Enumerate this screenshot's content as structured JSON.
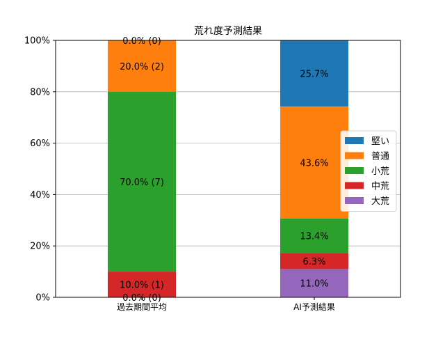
{
  "chart_data": {
    "type": "bar",
    "stacked": true,
    "title": "荒れ度予測結果",
    "xlabel": "",
    "ylabel": "",
    "categories": [
      "過去期間平均",
      "AI予測結果"
    ],
    "ylim": [
      0,
      100
    ],
    "yticks": [
      0,
      20,
      40,
      60,
      80,
      100
    ],
    "ytick_labels": [
      "0%",
      "20%",
      "40%",
      "60%",
      "80%",
      "100%"
    ],
    "grid": "horizontal",
    "legend_position": "right",
    "series": [
      {
        "name": "大荒",
        "color": "#9467bd",
        "values": [
          0,
          11.0
        ],
        "labels": [
          "0.0% (0)",
          "11.0%"
        ]
      },
      {
        "name": "中荒",
        "color": "#d62728",
        "values": [
          10.0,
          6.3
        ],
        "labels": [
          "10.0% (1)",
          "6.3%"
        ]
      },
      {
        "name": "小荒",
        "color": "#2ca02c",
        "values": [
          70.0,
          13.4
        ],
        "labels": [
          "70.0% (7)",
          "13.4%"
        ]
      },
      {
        "name": "普通",
        "color": "#ff7f0e",
        "values": [
          20.0,
          43.6
        ],
        "labels": [
          "20.0% (2)",
          "43.6%"
        ]
      },
      {
        "name": "堅い",
        "color": "#1f77b4",
        "values": [
          0,
          25.7
        ],
        "labels": [
          "0.0% (0)",
          "25.7%"
        ]
      }
    ],
    "legend_order": [
      "堅い",
      "普通",
      "小荒",
      "中荒",
      "大荒"
    ]
  }
}
